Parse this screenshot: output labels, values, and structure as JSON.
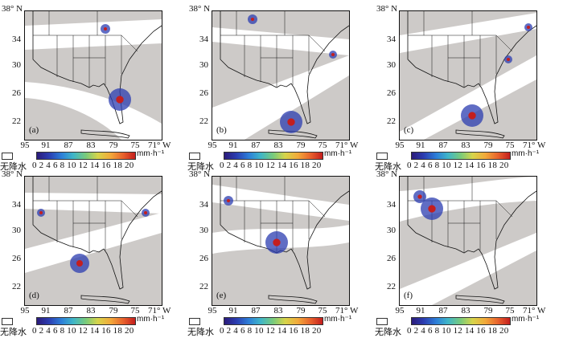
{
  "lat_top": "38° N",
  "lat_labels": [
    "34",
    "30",
    "26",
    "22"
  ],
  "lon_labels": [
    "95",
    "91",
    "87",
    "83",
    "79",
    "75"
  ],
  "lon_last": "71° W",
  "legend_no_rain": "无降水",
  "colorbar_unit": "mm·h⁻¹",
  "colorbar_ticks": "0 2 4 6 8 10 12 14 16 18 20",
  "panels": [
    {
      "label": "(a)"
    },
    {
      "label": "(b)"
    },
    {
      "label": "(c)"
    },
    {
      "label": "(d)"
    },
    {
      "label": "(e)"
    },
    {
      "label": "(f)"
    }
  ],
  "colors": {
    "background_gray": "#cdcac8",
    "swath_white": "#ffffff",
    "coast_line": "#111111",
    "rain_blue": "#2b3cb0",
    "rain_red": "#c41e1e"
  }
}
